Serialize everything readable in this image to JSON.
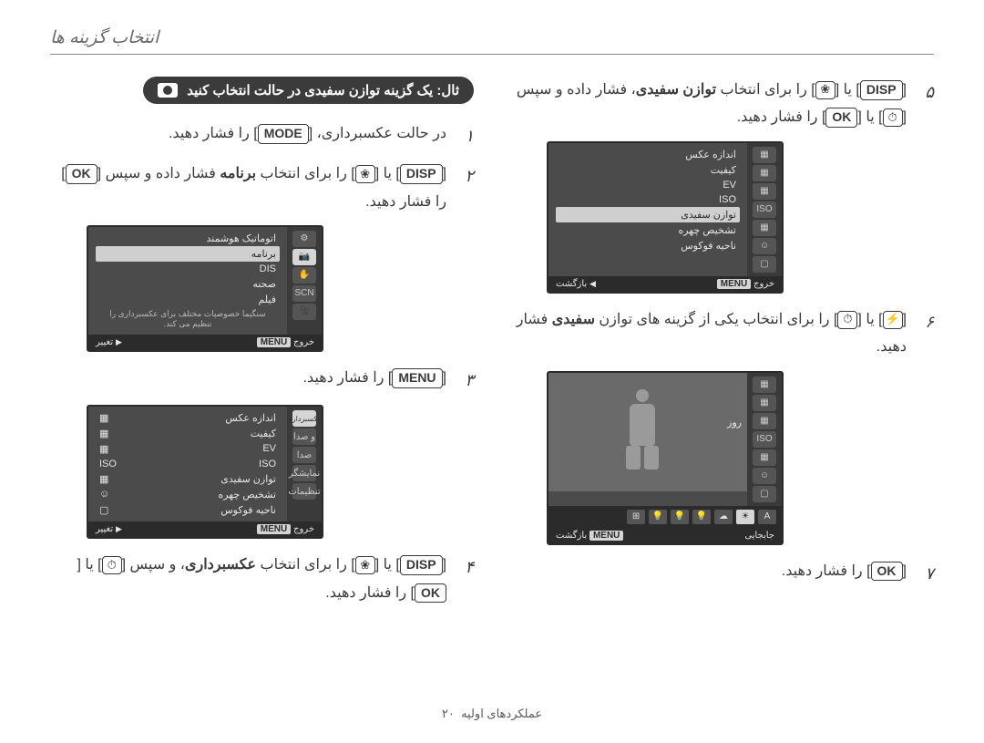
{
  "page_title": "انتخاب گزینه ها",
  "header": {
    "label": "ثال: یک گزینه توازن سفیدی در حالت  انتخاب کنید"
  },
  "btn": {
    "mode": "MODE",
    "disp": "DISP",
    "ok": "OK",
    "menu": "MENU"
  },
  "steps_right": [
    {
      "num": "۱",
      "pre": "در حالت عکسبرداری، ",
      "btn": "mode",
      "post": " را فشار دهید."
    },
    {
      "num": "۲",
      "pre": "",
      "btn": "disp",
      "mid1": " یا ",
      "mid2": " را برای انتخاب ",
      "bold": "برنامه",
      "mid3": " فشار داده و سپس ",
      "btn2": "ok",
      "post": " را فشار دهید."
    },
    {
      "num": "۳",
      "btn": "menu",
      "post": " را فشار دهید."
    },
    {
      "num": "۴",
      "btn": "disp",
      "mid1": " یا ",
      "mid2": " را برای انتخاب ",
      "bold": "عکسبرداری",
      "mid3": "، و سپس ",
      "mid4": " یا ",
      "btn2": "ok",
      "post": " را فشار دهید."
    }
  ],
  "steps_left": [
    {
      "num": "۵",
      "btn": "disp",
      "mid1": " یا ",
      "mid2": " را برای انتخاب ",
      "bold": "توازن سفیدی",
      "mid3": "، فشار داده و سپس ",
      "mid4": " یا ",
      "btn2": "ok",
      "post": " را فشار دهید."
    },
    {
      "num": "۶",
      "mid1": " یا ",
      "mid2": " را برای انتخاب یکی از گزینه های توازن ",
      "bold": "سفیدی",
      "post": " فشار دهید."
    },
    {
      "num": "۷",
      "btn": "ok",
      "post": " را فشار دهید."
    }
  ],
  "lcd1": {
    "sidebar": [
      "⚙",
      "📷",
      "✋",
      "SCN",
      "🎥"
    ],
    "rows": [
      {
        "label": "اتوماتیک هوشمند",
        "val": ""
      },
      {
        "label": "برنامه",
        "val": "",
        "hl": true
      },
      {
        "label": "DIS",
        "val": ""
      },
      {
        "label": "صحنه",
        "val": ""
      },
      {
        "label": "فیلم",
        "val": ""
      }
    ],
    "note": "سنگیما خصوصیات مختلف برای عکسبرداری را تنظیم می کند.",
    "foot": {
      "right": "خروج",
      "tag_r": "MENU",
      "left": "تغییر",
      "tri": "▶"
    }
  },
  "lcd2": {
    "sidebar": [
      "📷",
      "🔊",
      "🖥",
      "⚙"
    ],
    "rows": [
      {
        "label": "اندازه عکس",
        "val": "▦"
      },
      {
        "label": "کیفیت",
        "val": "▦"
      },
      {
        "label": "EV",
        "val": "▦"
      },
      {
        "label": "ISO",
        "val": "ISO"
      },
      {
        "label": "توازن سفیدی",
        "val": "▦"
      },
      {
        "label": "تشخیص چهره",
        "val": "☺"
      },
      {
        "label": "ناحیه فوکوس",
        "val": "▢"
      }
    ],
    "hl_label": "عکسبرداری",
    "right_col": [
      "و صدا",
      "صدا",
      "نمایشگر",
      "تنظیمات"
    ],
    "foot": {
      "right": "خروج",
      "tag_r": "MENU",
      "left": "تغییر",
      "tri": "▶"
    }
  },
  "lcd3": {
    "sidebar": [
      "▦",
      "▦",
      "▦",
      "ISO",
      "▦",
      "☺",
      "▢"
    ],
    "rows": [
      {
        "label": "اندازه عکس",
        "val": ""
      },
      {
        "label": "کیفیت",
        "val": ""
      },
      {
        "label": "EV",
        "val": ""
      },
      {
        "label": "ISO",
        "val": ""
      },
      {
        "label": "توازن سفیدی",
        "val": "",
        "hl": true
      },
      {
        "label": "تشخیص چهره",
        "val": ""
      },
      {
        "label": "ناحیه فوکوس",
        "val": ""
      }
    ],
    "foot": {
      "right": "خروج",
      "tag_r": "MENU",
      "left": "بازگشت",
      "tri": "◀"
    }
  },
  "lcd4": {
    "sidebar": [
      "▦",
      "▦",
      "▦",
      "ISO",
      "▦",
      "☺",
      "▢"
    ],
    "day_label": "روز",
    "strip": [
      "A",
      "☀",
      "☁",
      "💡",
      "💡",
      "💡",
      "⊞"
    ],
    "strip_sel": 1,
    "foot": {
      "right": "جابجایی",
      "tag_r": "MENU",
      "left": "بازگشت"
    }
  },
  "footer": {
    "label": "عملکردهای اولیه",
    "page": "۲۰"
  }
}
